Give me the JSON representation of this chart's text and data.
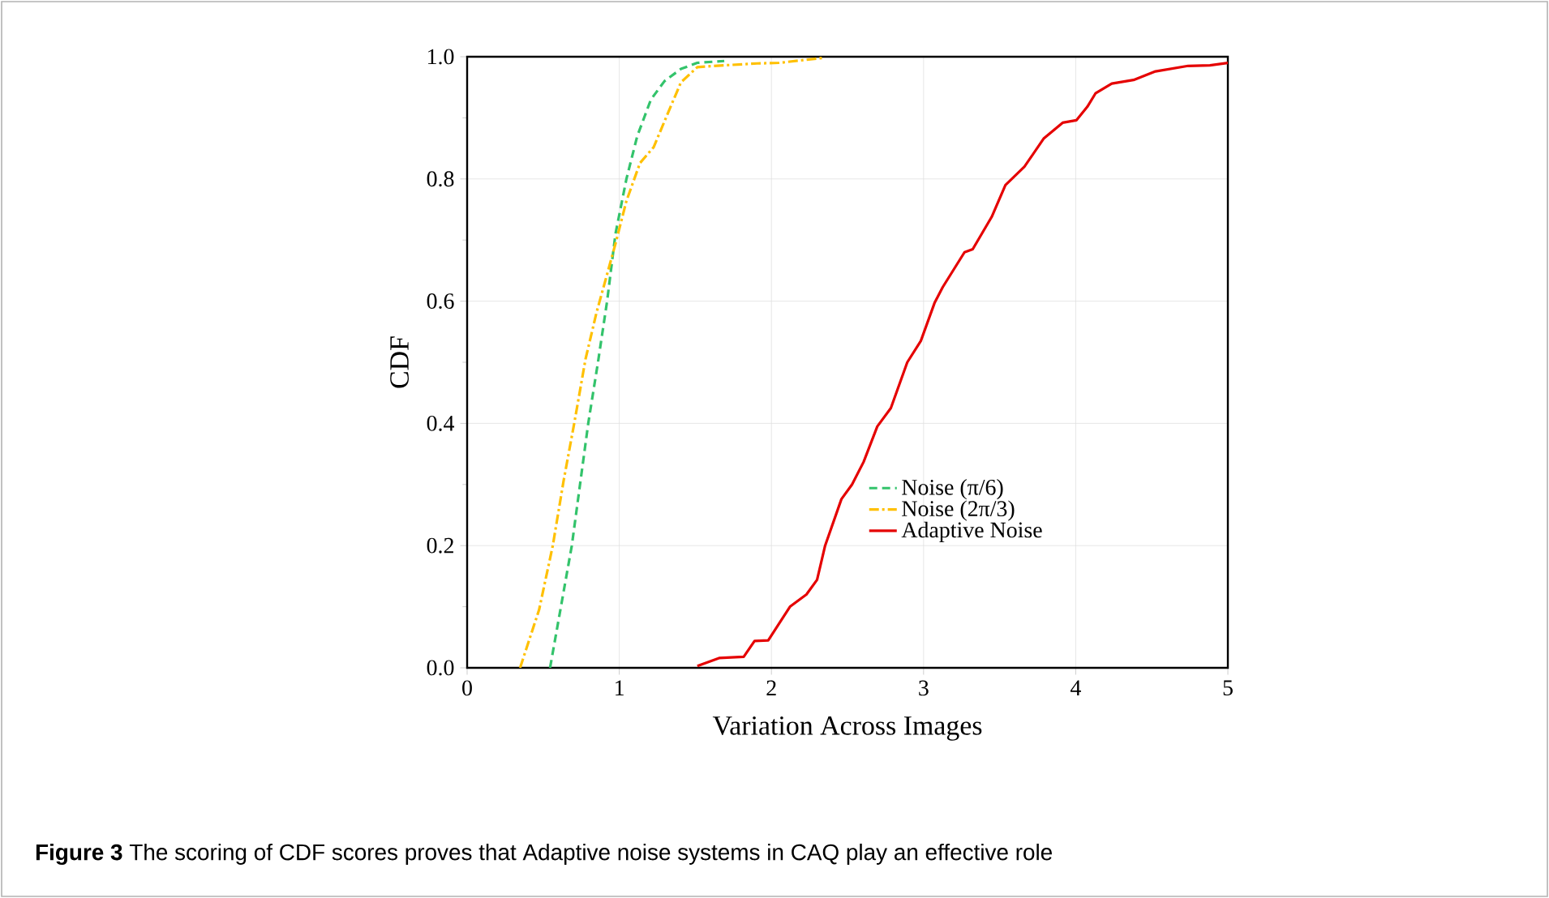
{
  "chart_data": {
    "type": "line",
    "xlabel": "Variation Across Images",
    "ylabel": "CDF",
    "xlim": [
      0,
      5
    ],
    "ylim": [
      0,
      1
    ],
    "xticks": [
      0,
      1,
      2,
      3,
      4,
      5
    ],
    "yticks": [
      {
        "value": 0,
        "label": "0.0"
      },
      {
        "value": 0.2,
        "label": "0.2"
      },
      {
        "value": 0.4,
        "label": "0.4"
      },
      {
        "value": 0.6,
        "label": "0.6"
      },
      {
        "value": 0.8,
        "label": "0.8"
      },
      {
        "value": 1,
        "label": "1.0"
      }
    ],
    "grid": true,
    "legend": "bottom right",
    "marker": "none",
    "annotations": [
      "**Figure 3** The scoring of CDF scores proves that Adaptive noise systems in CAQ play an effective role"
    ],
    "series": [
      {
        "name": "Noise (π/6)",
        "color": "#33c36b",
        "line_style": "dashed",
        "x": [
          0.545,
          0.688,
          0.796,
          0.86,
          0.92,
          0.975,
          1.047,
          1.118,
          1.208,
          1.297,
          1.405,
          1.513,
          1.69
        ],
        "values": [
          0,
          0.2,
          0.4,
          0.5,
          0.6,
          0.71,
          0.8,
          0.87,
          0.93,
          0.96,
          0.98,
          0.99,
          0.993
        ]
      },
      {
        "name": "Noise (2π/3)",
        "color": "#ffc000",
        "line_style": "dashdot",
        "x": [
          0.348,
          0.473,
          0.563,
          0.634,
          0.706,
          0.778,
          0.849,
          0.975,
          1.047,
          1.136,
          1.226,
          1.315,
          1.405,
          1.513,
          1.692,
          1.907,
          2.05,
          2.337
        ],
        "values": [
          0,
          0.095,
          0.2,
          0.306,
          0.403,
          0.505,
          0.58,
          0.694,
          0.764,
          0.826,
          0.852,
          0.905,
          0.958,
          0.983,
          0.986,
          0.989,
          0.99,
          0.998
        ]
      },
      {
        "name": "Adaptive Noise",
        "color": "#e50000",
        "line_style": "solid",
        "x": [
          1.513,
          1.656,
          1.818,
          1.889,
          1.979,
          2.122,
          2.23,
          2.3,
          2.353,
          2.46,
          2.53,
          2.606,
          2.696,
          2.785,
          2.893,
          2.982,
          3.072,
          3.126,
          3.269,
          3.323,
          3.448,
          3.538,
          3.663,
          3.789,
          3.914,
          4.004,
          4.076,
          4.13,
          4.237,
          4.38,
          4.524,
          4.739,
          4.882,
          5.0
        ],
        "values": [
          0.003,
          0.016,
          0.018,
          0.044,
          0.045,
          0.1,
          0.12,
          0.144,
          0.2,
          0.276,
          0.3,
          0.337,
          0.395,
          0.425,
          0.5,
          0.535,
          0.597,
          0.623,
          0.68,
          0.685,
          0.738,
          0.79,
          0.82,
          0.866,
          0.892,
          0.896,
          0.918,
          0.94,
          0.956,
          0.962,
          0.976,
          0.985,
          0.986,
          0.99
        ]
      }
    ]
  }
}
